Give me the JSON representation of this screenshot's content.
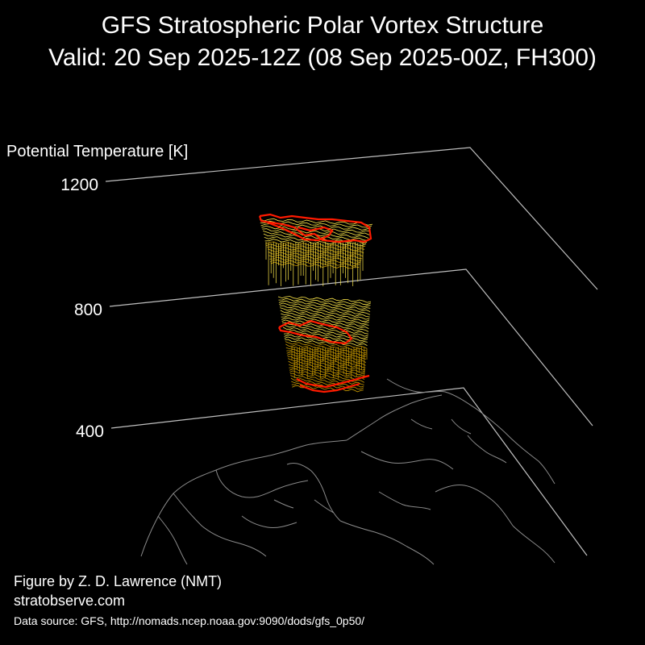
{
  "header": {
    "title_line1": "GFS Stratospheric Polar Vortex Structure",
    "title_line2": "Valid: 20 Sep 2025-12Z  (08 Sep 2025-00Z, FH300)"
  },
  "chart_data": {
    "type": "3d-isosurface",
    "zlabel": "Potential Temperature [K]",
    "z_ticks": [
      400,
      800,
      1200
    ],
    "zlim": [
      400,
      1200
    ],
    "grid": true,
    "colors": {
      "background": "#000000",
      "plane_lines": "#bfbfbf",
      "coastline": "#8a8a8a",
      "vortex_edge": "#ff1a00",
      "vortex_fill_light": "#ffe94a",
      "vortex_fill_dark": "#c99a00"
    },
    "vortex_layers": [
      {
        "name_hidden": true,
        "theta_top": 1200,
        "theta_bottom": 1000
      },
      {
        "name_hidden": true,
        "theta_top": 850,
        "theta_bottom": 550
      }
    ]
  },
  "footer": {
    "credit": "Figure by Z. D. Lawrence (NMT)",
    "website": "stratobserve.com",
    "data_source": "Data source: GFS, http://nomads.ncep.noaa.gov:9090/dods/gfs_0p50/"
  }
}
